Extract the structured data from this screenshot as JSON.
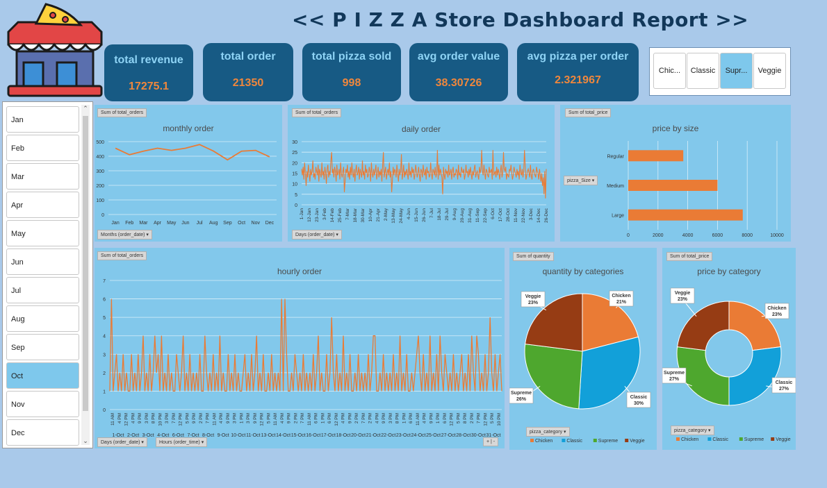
{
  "title": "<<  P I Z Z A Store Dashboard Report  >>",
  "kpis": [
    {
      "label": "total revenue",
      "value": "17275.1"
    },
    {
      "label": "total order",
      "value": "21350"
    },
    {
      "label": "total pizza sold",
      "value": "998"
    },
    {
      "label": "avg order value",
      "value": "38.30726"
    },
    {
      "label": "avg pizza per order",
      "value": "2.321967"
    }
  ],
  "category_slicer": [
    {
      "label": "Chic...",
      "selected": false
    },
    {
      "label": "Classic",
      "selected": false
    },
    {
      "label": "Supr...",
      "selected": true
    },
    {
      "label": "Veggie",
      "selected": false
    }
  ],
  "month_slicer": [
    {
      "label": "Jan",
      "selected": false
    },
    {
      "label": "Feb",
      "selected": false
    },
    {
      "label": "Mar",
      "selected": false
    },
    {
      "label": "Apr",
      "selected": false
    },
    {
      "label": "May",
      "selected": false
    },
    {
      "label": "Jun",
      "selected": false
    },
    {
      "label": "Jul",
      "selected": false
    },
    {
      "label": "Aug",
      "selected": false
    },
    {
      "label": "Sep",
      "selected": false
    },
    {
      "label": "Oct",
      "selected": true
    },
    {
      "label": "Nov",
      "selected": false
    },
    {
      "label": "Dec",
      "selected": false
    }
  ],
  "tags": {
    "monthly_field": "Sum of total_orders",
    "monthly_axis": "Months (order_date)",
    "daily_field": "Sum of total_orders",
    "daily_axis": "Days (order_date)",
    "size_field": "Sum of total_price",
    "size_axis": "pizza_Size",
    "hourly_field": "Sum of total_orders",
    "hourly_axis1": "Days (order_date)",
    "hourly_axis2": "Hours (order_time)",
    "qty_field": "Sum of quantity",
    "qty_axis": "pizza_category",
    "price_field": "Sum of total_price",
    "price_axis": "pizza_category",
    "expand": "+ | -"
  },
  "colors": {
    "line": "#ea7b35",
    "chicken": "#ea7b35",
    "classic": "#12a0d9",
    "supreme": "#4ea72e",
    "veggie": "#963c14",
    "panel": "#82c8eb"
  },
  "chart_data": [
    {
      "id": "monthly",
      "type": "line",
      "title": "monthly order",
      "categories": [
        "Jan",
        "Feb",
        "Mar",
        "Apr",
        "May",
        "Jun",
        "Jul",
        "Aug",
        "Sep",
        "Oct",
        "Nov",
        "Dec"
      ],
      "values": [
        455,
        410,
        435,
        455,
        440,
        455,
        480,
        435,
        375,
        435,
        440,
        395
      ],
      "ylim": [
        0,
        500
      ],
      "yticks": [
        0,
        100,
        200,
        300,
        400,
        500
      ]
    },
    {
      "id": "daily",
      "type": "line",
      "title": "daily order",
      "ylim": [
        0,
        30
      ],
      "yticks": [
        0,
        5,
        10,
        15,
        20,
        25,
        30
      ],
      "xticks": [
        "1-Jan",
        "12-Jan",
        "23-Jan",
        "3-Feb",
        "14-Feb",
        "25-Feb",
        "7-Mar",
        "18-Mar",
        "30-Mar",
        "10-Apr",
        "21-Apr",
        "2-May",
        "13-May",
        "24-May",
        "4-Jun",
        "15-Jun",
        "26-Jun",
        "7-Jul",
        "18-Jul",
        "29-Jul",
        "9-Aug",
        "20-Aug",
        "31-Aug",
        "11-Sep",
        "22-Sep",
        "6-Oct",
        "17-Oct",
        "28-Oct",
        "11-Nov",
        "22-Nov",
        "3-Dec",
        "14-Dec",
        "26-Dec"
      ],
      "values": [
        17,
        14,
        18,
        12,
        20,
        15,
        9,
        16,
        13,
        19,
        15,
        11,
        17,
        14,
        16,
        21,
        13,
        15,
        12,
        18,
        16,
        14,
        19,
        11,
        17,
        15,
        13,
        20,
        14,
        16,
        12,
        18,
        15,
        10,
        17,
        19,
        13,
        16,
        14,
        21,
        12,
        15,
        17,
        13,
        18,
        16,
        11,
        19,
        14,
        15,
        17,
        12,
        20,
        15,
        13,
        16,
        18,
        14,
        11,
        17,
        15,
        19,
        13,
        16,
        12,
        18,
        14,
        20,
        15,
        13,
        17,
        11,
        16,
        19,
        14,
        15,
        18,
        12,
        17,
        15,
        13,
        21,
        14,
        16,
        12,
        19,
        15,
        17,
        13,
        14,
        18,
        16,
        11,
        20,
        15,
        13,
        17,
        14,
        16,
        19,
        12,
        15,
        18,
        13,
        16,
        14,
        17,
        11,
        19,
        15,
        13,
        16,
        18,
        12,
        15,
        17,
        14,
        20,
        13,
        16,
        15,
        12,
        18,
        14,
        17,
        16,
        13,
        19,
        15,
        11,
        17,
        14,
        16,
        18,
        12,
        15,
        19,
        13,
        16,
        14,
        17,
        15,
        12,
        20,
        14,
        16,
        13,
        18,
        15,
        17,
        12,
        14,
        19,
        16,
        13,
        15,
        18,
        14,
        11,
        17,
        16,
        13,
        19,
        15,
        14,
        17,
        12,
        18,
        15,
        16,
        13,
        14,
        20,
        15,
        12,
        17,
        16,
        14,
        18,
        13,
        15,
        16,
        12,
        19,
        14,
        17,
        15,
        13,
        16,
        18,
        14,
        12,
        17,
        15,
        16,
        13,
        19,
        14,
        15,
        17,
        12,
        16,
        18,
        13,
        15,
        14,
        17,
        16,
        12,
        19,
        14,
        15,
        13,
        18,
        16,
        15,
        17,
        12,
        14,
        19,
        15,
        16,
        13,
        17,
        14,
        18,
        15,
        12,
        16,
        14,
        17,
        19,
        13,
        15,
        16,
        14,
        12,
        18,
        15,
        17,
        13,
        16,
        14,
        19,
        15,
        12,
        17,
        16,
        14,
        13,
        18,
        15,
        16,
        17,
        12,
        19,
        14,
        15,
        16,
        13,
        18,
        14,
        17,
        15,
        12,
        16,
        19,
        13,
        15,
        14,
        17,
        16,
        18,
        12,
        15,
        14,
        13,
        17,
        16,
        19,
        15,
        12,
        14,
        18,
        16,
        15,
        13,
        17,
        14,
        16,
        12,
        19,
        15,
        14,
        17,
        13,
        16,
        15,
        18,
        12,
        14,
        16,
        17,
        15,
        13,
        19,
        14,
        12,
        16,
        17,
        15,
        14,
        13,
        18,
        16,
        15,
        12,
        17,
        14,
        11,
        15,
        9,
        13,
        5,
        16,
        3,
        17
      ],
      "spikes": {
        "40": 25,
        "57": 6,
        "109": 25,
        "120": 6,
        "133": 24,
        "181": 26,
        "188": 5,
        "240": 26,
        "255": 26,
        "269": 25,
        "297": 26
      }
    },
    {
      "id": "size",
      "type": "bar",
      "orientation": "horizontal",
      "title": "price by size",
      "categories": [
        "Regular",
        "Medium",
        "Large"
      ],
      "values": [
        3700,
        6000,
        7700
      ],
      "xlim": [
        0,
        10000
      ],
      "xticks": [
        0,
        2000,
        4000,
        6000,
        8000,
        10000
      ]
    },
    {
      "id": "hourly",
      "type": "line",
      "title": "hourly order",
      "ylim": [
        0,
        7
      ],
      "yticks": [
        0,
        1,
        2,
        3,
        4,
        5,
        6,
        7
      ],
      "hour_labels": [
        "11 AM",
        "4 PM",
        "12 PM",
        "4 PM",
        "9 PM",
        "3 PM",
        "8 PM",
        "10 PM",
        "3 PM",
        "7 PM",
        "12 PM",
        "5 PM",
        "9 PM",
        "2 PM",
        "7 PM",
        "11 AM",
        "4 PM",
        "9 PM",
        "3 PM",
        "1 PM",
        "3 PM",
        "9 PM",
        "12 PM",
        "5 PM",
        "11 AM",
        "4 PM",
        "9 PM",
        "2 PM",
        "7 PM",
        "11 AM",
        "6 PM",
        "1 PM",
        "6 PM",
        "12 PM",
        "4 PM",
        "9 PM",
        "2 PM",
        "7 PM",
        "2 PM",
        "4 PM",
        "9 PM",
        "3 PM",
        "8 PM",
        "1 PM",
        "6 PM",
        "11 AM",
        "4 PM",
        "9 PM",
        "1 PM",
        "6 PM",
        "12 PM",
        "5 PM",
        "8 PM",
        "2 PM",
        "7 PM",
        "12 PM",
        "5 PM",
        "10 PM"
      ],
      "day_labels": [
        "1-Oct",
        "2-Oct",
        "3-Oct",
        "4-Oct",
        "6-Oct",
        "7-Oct",
        "8-Oct",
        "9-Oct",
        "10-Oct",
        "11-Oct",
        "13-Oct",
        "14-Oct",
        "15-Oct",
        "16-Oct",
        "17-Oct",
        "18-Oct",
        "20-Oct",
        "21-Oct",
        "22-Oct",
        "23-Oct",
        "24-Oct",
        "25-Oct",
        "27-Oct",
        "28-Oct",
        "30-Oct",
        "31-Oct"
      ],
      "values": [
        1,
        6,
        1,
        2,
        3,
        1,
        2,
        1,
        3,
        1,
        2,
        1,
        1,
        3,
        1,
        2,
        1,
        3,
        1,
        2,
        4,
        1,
        2,
        1,
        3,
        1,
        2,
        1,
        2,
        3,
        1,
        4,
        1,
        2,
        1,
        3,
        1,
        2,
        1,
        1,
        3,
        2,
        1,
        2,
        4,
        1,
        2,
        1,
        3,
        1,
        2,
        1,
        2,
        1,
        3,
        1,
        1,
        4,
        2,
        1,
        2,
        1,
        3,
        1,
        2,
        1,
        4,
        1,
        2,
        1,
        1,
        3,
        1,
        2,
        1,
        3,
        1,
        2,
        1,
        1,
        2,
        3,
        1,
        2,
        1,
        3,
        1,
        2,
        4,
        1,
        2,
        1,
        3,
        1,
        1,
        2,
        1,
        3,
        1,
        2,
        1,
        2,
        1,
        6,
        1,
        2,
        3,
        1,
        1,
        2,
        1,
        3,
        2,
        1,
        2,
        1,
        3,
        1,
        2,
        1,
        2,
        1,
        3,
        1,
        2,
        4,
        1,
        2,
        1,
        1,
        3,
        1,
        2,
        1,
        2,
        1,
        3,
        1,
        2,
        1,
        4,
        1,
        2,
        1,
        3,
        1,
        1,
        2,
        1,
        3,
        1,
        2,
        1,
        2,
        1,
        3,
        1,
        2,
        1,
        4,
        1,
        1,
        2,
        1,
        3,
        1,
        2,
        1,
        2,
        1,
        3,
        1,
        2,
        1,
        4,
        1,
        2,
        1,
        3,
        1,
        1,
        2,
        1,
        2,
        3,
        1,
        2,
        1,
        3,
        1,
        2,
        1,
        4,
        1,
        2,
        1,
        3,
        1,
        1,
        2,
        1,
        3,
        2,
        1,
        2,
        1,
        3,
        1,
        2,
        1,
        2,
        3,
        1,
        2,
        1,
        3,
        1,
        4,
        2,
        1,
        2,
        3,
        1,
        2,
        1,
        3,
        1,
        2,
        1,
        2,
        1,
        3,
        1,
        2,
        3,
        1
      ],
      "spikes": {
        "1": 6,
        "27": 4,
        "66": 4,
        "105": 6,
        "133": 5,
        "158": 4,
        "185": 4,
        "198": 4,
        "220": 4,
        "228": 5,
        "240": 4
      }
    },
    {
      "id": "qty",
      "type": "pie",
      "title": "quantity by categories",
      "categories": [
        "Chicken",
        "Classic",
        "Supreme",
        "Veggie"
      ],
      "values": [
        21,
        30,
        26,
        23
      ],
      "labels": [
        "21%",
        "30%",
        "26%",
        "23%"
      ]
    },
    {
      "id": "price",
      "type": "pie",
      "variant": "doughnut",
      "title": "price by category",
      "categories": [
        "Chicken",
        "Classic",
        "Supreme",
        "Veggie"
      ],
      "values": [
        23,
        27,
        27,
        23
      ],
      "labels": [
        "23%",
        "27%",
        "27%",
        "23%"
      ]
    }
  ]
}
